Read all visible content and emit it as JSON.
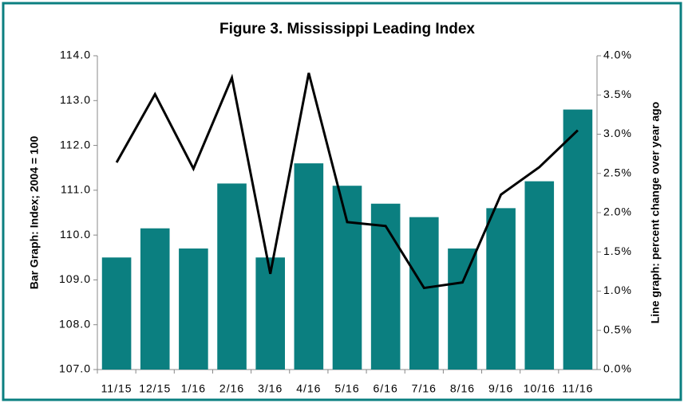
{
  "chart_data": {
    "type": "bar+line",
    "title": "Figure 3. Mississippi Leading Index",
    "y_label": "Bar Graph: Index; 2004 = 100",
    "y2_label": "Line graph: percent change over year ago",
    "categories": [
      "11/15",
      "12/15",
      "1/16",
      "2/16",
      "3/16",
      "4/16",
      "5/16",
      "6/16",
      "7/16",
      "8/16",
      "9/16",
      "10/16",
      "11/16"
    ],
    "series": [
      {
        "name": "Index",
        "type": "bar",
        "color": "#0b7f80",
        "axis": "y",
        "values": [
          109.5,
          110.15,
          109.7,
          111.15,
          109.5,
          111.6,
          111.1,
          110.7,
          110.4,
          109.7,
          110.6,
          111.2,
          112.8
        ]
      },
      {
        "name": "Percent change over year ago",
        "type": "line",
        "color": "#000000",
        "axis": "y2",
        "values": [
          2.64,
          3.51,
          2.56,
          3.72,
          1.22,
          3.78,
          1.88,
          1.83,
          1.04,
          1.11,
          2.23,
          2.58,
          3.05
        ]
      }
    ],
    "ylim": [
      107,
      114
    ],
    "yticks": [
      {
        "value": 107,
        "label": "107.0"
      },
      {
        "value": 108,
        "label": "108.0"
      },
      {
        "value": 109,
        "label": "109.0"
      },
      {
        "value": 110,
        "label": "110.0"
      },
      {
        "value": 111,
        "label": "111.0"
      },
      {
        "value": 112,
        "label": "112.0"
      },
      {
        "value": 113,
        "label": "113.0"
      },
      {
        "value": 114,
        "label": "114.0"
      }
    ],
    "y2lim": [
      0,
      4
    ],
    "y2ticks": [
      {
        "value": 0,
        "label": "0.0%"
      },
      {
        "value": 0.5,
        "label": "0.5%"
      },
      {
        "value": 1,
        "label": "1.0%"
      },
      {
        "value": 1.5,
        "label": "1.5%"
      },
      {
        "value": 2,
        "label": "2.0%"
      },
      {
        "value": 2.5,
        "label": "2.5%"
      },
      {
        "value": 3,
        "label": "3.0%"
      },
      {
        "value": 3.5,
        "label": "3.5%"
      },
      {
        "value": 4,
        "label": "4.0%"
      }
    ],
    "grid": false
  }
}
